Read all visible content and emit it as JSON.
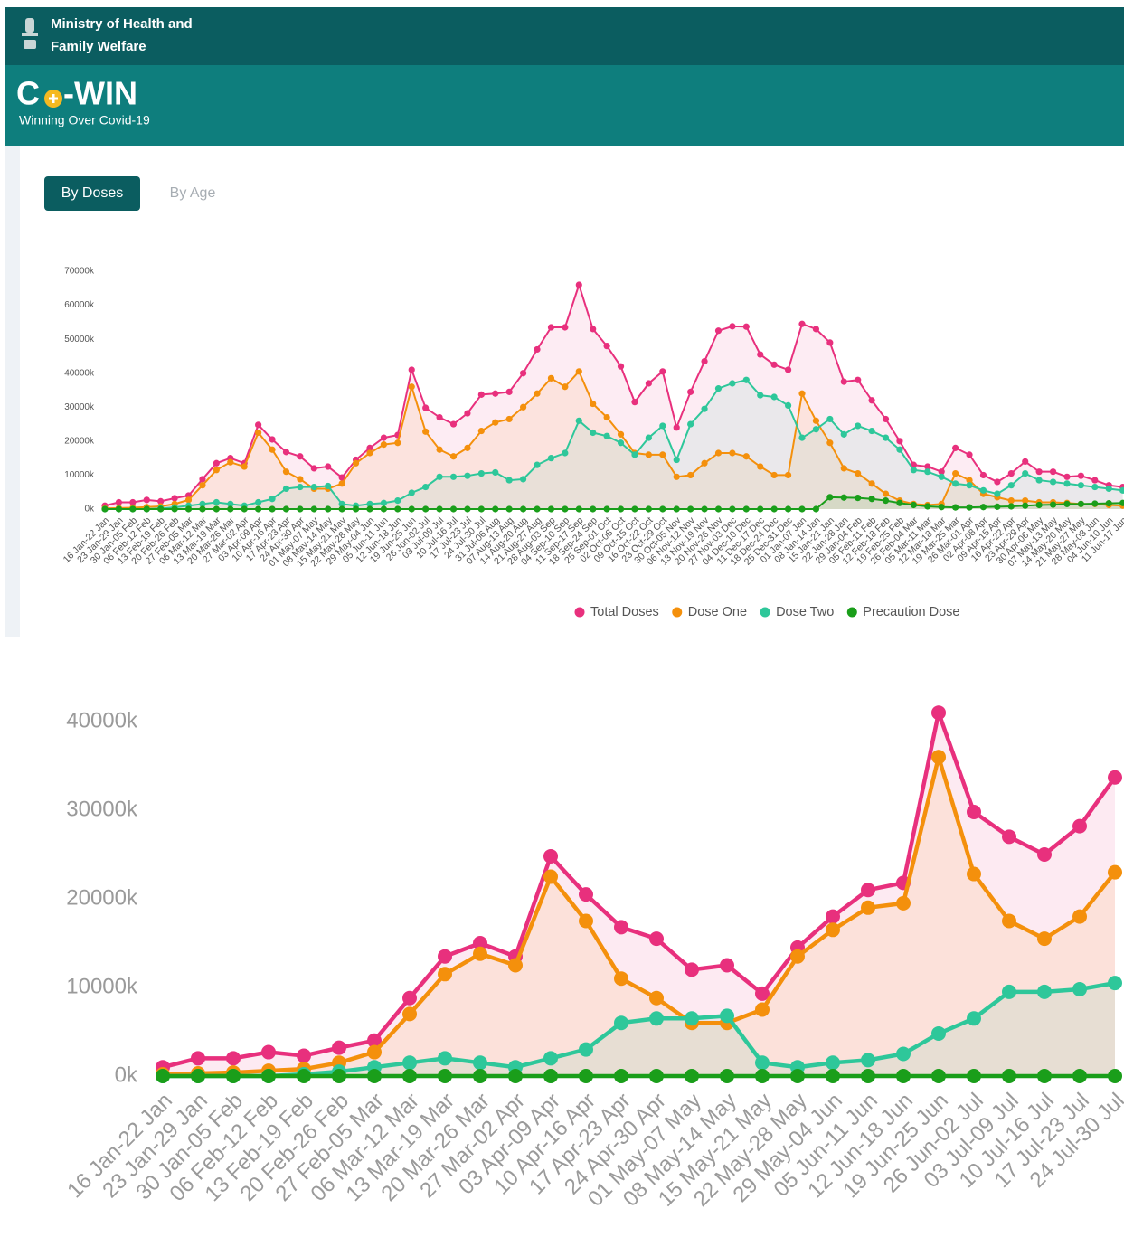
{
  "header": {
    "ministry": [
      "Ministry of Health and",
      "Family Welfare"
    ],
    "brand_left": "C",
    "brand_right": "-WIN",
    "tagline": "Winning Over Covid-19"
  },
  "tabs": [
    "By Doses",
    "By Age"
  ],
  "chart_data": [
    {
      "type": "line",
      "categories": [
        "16 Jan-22 Jan",
        "23 Jan-29 Jan",
        "30 Jan-05 Feb",
        "06 Feb-12 Feb",
        "13 Feb-19 Feb",
        "20 Feb-26 Feb",
        "27 Feb-05 Mar",
        "06 Mar-12 Mar",
        "13 Mar-19 Mar",
        "20 Mar-26 Mar",
        "27 Mar-02 Apr",
        "03 Apr-09 Apr",
        "10 Apr-16 Apr",
        "17 Apr-23 Apr",
        "24 Apr-30 Apr",
        "01 May-07 May",
        "08 May-14 May",
        "15 May-21 May",
        "22 May-28 May",
        "29 May-04 Jun",
        "05 Jun-11 Jun",
        "12 Jun-18 Jun",
        "19 Jun-25 Jun",
        "26 Jun-02 Jul",
        "03 Jul-09 Jul",
        "10 Jul-16 Jul",
        "17 Jul-23 Jul",
        "24 Jul-30 Jul",
        "31 Jul-06 Aug",
        "07 Aug-13 Aug",
        "14 Aug-20 Aug",
        "21 Aug-27 Aug",
        "28 Aug-03 Sep",
        "04 Sep-10 Sep",
        "11 Sep-17 Sep",
        "18 Sep-24 Sep",
        "25 Sep-01 Oct",
        "02 Oct-08 Oct",
        "09 Oct-15 Oct",
        "16 Oct-22 Oct",
        "23 Oct-29 Oct",
        "30 Oct-05 Nov",
        "06 Nov-12 Nov",
        "13 Nov-19 Nov",
        "20 Nov-26 Nov",
        "27 Nov-03 Dec",
        "04 Dec-10 Dec",
        "11 Dec-17 Dec",
        "18 Dec-24 Dec",
        "25 Dec-31 Dec",
        "01 Jan-07 Jan",
        "08 Jan-14 Jan",
        "15 Jan-21 Jan",
        "22 Jan-28 Jan",
        "29 Jan-04 Feb",
        "05 Feb-11 Feb",
        "12 Feb-18 Feb",
        "19 Feb-25 Feb",
        "26 Feb-04 Mar",
        "05 Mar-11 Mar",
        "12 Mar-18 Mar",
        "19 Mar-25 Mar",
        "26 Mar-01 Apr",
        "02 Apr-08 Apr",
        "09 Apr-15 Apr",
        "16 Apr-22 Apr",
        "23 Apr-29 Apr",
        "30 Apr-06 May",
        "07 May-13 May",
        "14 May-20 May",
        "21 May-27 May",
        "28 May-03 Jun",
        "04 Jun-10 Jun",
        "11 Jun-17 Jun"
      ],
      "series": [
        {
          "name": "Total Doses",
          "color": "#e8307d",
          "values": [
            1000,
            2000,
            2000,
            2700,
            2300,
            3200,
            4000,
            8800,
            13500,
            15000,
            13500,
            24800,
            20500,
            16800,
            15500,
            12000,
            12500,
            9300,
            14500,
            18000,
            21000,
            21800,
            41000,
            29800,
            27000,
            25000,
            28200,
            33700,
            34000,
            34500,
            40000,
            47000,
            53500,
            53500,
            66000,
            53000,
            48000,
            42000,
            31500,
            37000,
            40500,
            24000,
            34500,
            43500,
            52500,
            53800,
            53700,
            45500,
            42500,
            41000,
            54500,
            53000,
            49000,
            37500,
            38000,
            32000,
            26500,
            20000,
            13000,
            12500,
            11000,
            18000,
            16000,
            10000,
            8000,
            10500,
            14000,
            11000,
            11000,
            9500,
            9800,
            8500,
            7000,
            6500
          ]
        },
        {
          "name": "Dose One",
          "color": "#f4900c",
          "values": [
            200,
            300,
            400,
            600,
            800,
            1500,
            2700,
            7000,
            11500,
            13800,
            12500,
            22500,
            17500,
            11000,
            8800,
            6000,
            6000,
            7500,
            13500,
            16500,
            19000,
            19500,
            36000,
            22800,
            17500,
            15500,
            18000,
            23000,
            25500,
            26500,
            30000,
            34000,
            38500,
            36000,
            40500,
            31000,
            27000,
            22000,
            16500,
            16000,
            16000,
            9500,
            10000,
            13500,
            16500,
            16500,
            15500,
            12500,
            10000,
            10000,
            34000,
            26000,
            19500,
            12000,
            10500,
            7500,
            4500,
            2500,
            1500,
            1200,
            1500,
            10500,
            8500,
            4500,
            3500,
            2500,
            2500,
            2000,
            2000,
            1800,
            1500,
            1500,
            1200,
            1000
          ]
        },
        {
          "name": "Dose Two",
          "color": "#2ec79a",
          "values": [
            0,
            0,
            0,
            0,
            200,
            500,
            1000,
            1500,
            2000,
            1500,
            1000,
            2000,
            3000,
            6000,
            6500,
            6500,
            6800,
            1500,
            1000,
            1500,
            1800,
            2500,
            4800,
            6500,
            9500,
            9500,
            9800,
            10500,
            10800,
            8500,
            8800,
            13000,
            15000,
            16500,
            26000,
            22500,
            21500,
            19500,
            16000,
            21000,
            24500,
            14500,
            25000,
            29500,
            35500,
            37000,
            38000,
            33500,
            33000,
            30500,
            21000,
            23500,
            26500,
            22000,
            24500,
            23000,
            21000,
            17500,
            11500,
            11000,
            9500,
            7500,
            7000,
            5500,
            4500,
            7000,
            10500,
            8500,
            8000,
            7500,
            7000,
            6500,
            6000,
            5500
          ]
        },
        {
          "name": "Precaution Dose",
          "color": "#1a9e1a",
          "values": [
            0,
            0,
            0,
            0,
            0,
            0,
            0,
            0,
            0,
            0,
            0,
            0,
            0,
            0,
            0,
            0,
            0,
            0,
            0,
            0,
            0,
            0,
            0,
            0,
            0,
            0,
            0,
            0,
            0,
            0,
            0,
            0,
            0,
            0,
            0,
            0,
            0,
            0,
            0,
            0,
            0,
            0,
            0,
            0,
            0,
            0,
            0,
            0,
            0,
            0,
            0,
            0,
            3500,
            3400,
            3300,
            3000,
            2500,
            1800,
            1200,
            800,
            600,
            500,
            500,
            600,
            700,
            800,
            1000,
            1200,
            1300,
            1500,
            1500,
            1600,
            1700,
            1800
          ]
        }
      ],
      "ylim": [
        0,
        70000
      ],
      "yticks": [
        {
          "value": 0,
          "label": "0k"
        },
        {
          "value": 10000,
          "label": "10000k"
        },
        {
          "value": 20000,
          "label": "20000k"
        },
        {
          "value": 30000,
          "label": "30000k"
        },
        {
          "value": 40000,
          "label": "40000k"
        },
        {
          "value": 50000,
          "label": "50000k"
        },
        {
          "value": 60000,
          "label": "60000k"
        },
        {
          "value": 70000,
          "label": "70000k"
        }
      ],
      "legend": "bottom"
    },
    {
      "type": "line",
      "categories": [
        "16 Jan-22 Jan",
        "23 Jan-29 Jan",
        "30 Jan-05 Feb",
        "06 Feb-12 Feb",
        "13 Feb-19 Feb",
        "20 Feb-26 Feb",
        "27 Feb-05 Mar",
        "06 Mar-12 Mar",
        "13 Mar-19 Mar",
        "20 Mar-26 Mar",
        "27 Mar-02 Apr",
        "03 Apr-09 Apr",
        "10 Apr-16 Apr",
        "17 Apr-23 Apr",
        "24 Apr-30 Apr",
        "01 May-07 May",
        "08 May-14 May",
        "15 May-21 May",
        "22 May-28 May",
        "29 May-04 Jun",
        "05 Jun-11 Jun",
        "12 Jun-18 Jun",
        "19 Jun-25 Jun",
        "26 Jun-02 Jul",
        "03 Jul-09 Jul",
        "10 Jul-16 Jul",
        "17 Jul-23 Jul",
        "24 Jul-30 Jul"
      ],
      "series": [
        {
          "color": "#e8307d",
          "values": [
            1000,
            2000,
            2000,
            2700,
            2300,
            3200,
            4000,
            8800,
            13500,
            15000,
            13500,
            24800,
            20500,
            16800,
            15500,
            12000,
            12500,
            9300,
            14500,
            18000,
            21000,
            21800,
            41000,
            29800,
            27000,
            25000,
            28200,
            33700
          ]
        },
        {
          "color": "#f4900c",
          "values": [
            200,
            300,
            400,
            600,
            800,
            1500,
            2700,
            7000,
            11500,
            13800,
            12500,
            22500,
            17500,
            11000,
            8800,
            6000,
            6000,
            7500,
            13500,
            16500,
            19000,
            19500,
            36000,
            22800,
            17500,
            15500,
            18000,
            23000
          ]
        },
        {
          "color": "#2ec79a",
          "values": [
            0,
            0,
            0,
            0,
            200,
            500,
            1000,
            1500,
            2000,
            1500,
            1000,
            2000,
            3000,
            6000,
            6500,
            6500,
            6800,
            1500,
            1000,
            1500,
            1800,
            2500,
            4800,
            6500,
            9500,
            9500,
            9800,
            10500
          ]
        },
        {
          "color": "#1a9e1a",
          "values": [
            0,
            0,
            0,
            0,
            0,
            0,
            0,
            0,
            0,
            0,
            0,
            0,
            0,
            0,
            0,
            0,
            0,
            0,
            0,
            0,
            0,
            0,
            0,
            0,
            0,
            0,
            0,
            0
          ]
        }
      ],
      "ylim": [
        0,
        40000
      ],
      "yticks": [
        {
          "value": 0,
          "label": "0k"
        },
        {
          "value": 10000,
          "label": "10000k"
        },
        {
          "value": 20000,
          "label": "20000k"
        },
        {
          "value": 30000,
          "label": "30000k"
        },
        {
          "value": 40000,
          "label": "40000k"
        }
      ]
    }
  ]
}
